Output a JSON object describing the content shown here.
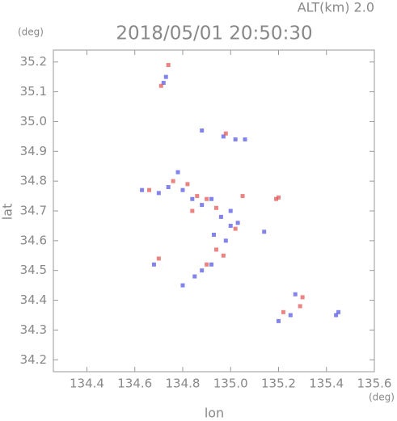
{
  "chart_data": {
    "type": "scatter",
    "title": "2018/05/01 20:50:30",
    "subtitle": "ALT(km) 2.0",
    "y_unit": "(deg)",
    "x_unit": "(deg)",
    "y_label": "lat",
    "x_label": "lon",
    "xlim": [
      134.26,
      135.6
    ],
    "ylim": [
      34.16,
      35.24
    ],
    "xticks": [
      134.4,
      134.6,
      134.8,
      {
        "value": 135,
        "label": "135.0"
      },
      135.2,
      135.4,
      135.6
    ],
    "yticks": [
      34.2,
      34.3,
      34.4,
      34.5,
      34.6,
      34.7,
      34.8,
      34.9,
      {
        "value": 35,
        "label": "35.0"
      },
      35.1,
      35.2
    ],
    "series": [
      {
        "color": "#5a5ae6",
        "x": [
          134.72,
          134.73,
          134.88,
          134.97,
          135.02,
          135.06,
          134.63,
          134.7,
          134.74,
          134.78,
          134.8,
          134.84,
          134.88,
          134.92,
          134.96,
          135.0,
          135.03,
          134.98,
          134.92,
          134.88,
          134.85,
          134.8,
          134.68,
          135.2,
          135.25,
          135.27,
          135.44,
          135.45,
          135.14,
          135.0,
          134.93
        ],
        "values": [
          35.13,
          35.15,
          34.97,
          34.95,
          34.94,
          34.94,
          34.77,
          34.76,
          34.78,
          34.83,
          34.77,
          34.74,
          34.72,
          34.74,
          34.68,
          34.65,
          34.66,
          34.6,
          34.52,
          34.5,
          34.48,
          34.45,
          34.52,
          34.33,
          34.35,
          34.42,
          34.35,
          34.36,
          34.63,
          34.7,
          34.62
        ]
      },
      {
        "color": "#e65a5a",
        "x": [
          134.74,
          134.71,
          134.98,
          134.66,
          134.76,
          134.82,
          134.86,
          134.9,
          134.94,
          135.05,
          135.19,
          135.2,
          134.97,
          134.94,
          134.9,
          135.29,
          135.3,
          135.22,
          135.02,
          134.84,
          134.7
        ],
        "values": [
          35.19,
          35.12,
          34.96,
          34.77,
          34.8,
          34.79,
          34.75,
          34.74,
          34.71,
          34.75,
          34.74,
          34.745,
          34.55,
          34.57,
          34.52,
          34.38,
          34.41,
          34.36,
          34.64,
          34.7,
          34.54
        ]
      }
    ]
  }
}
